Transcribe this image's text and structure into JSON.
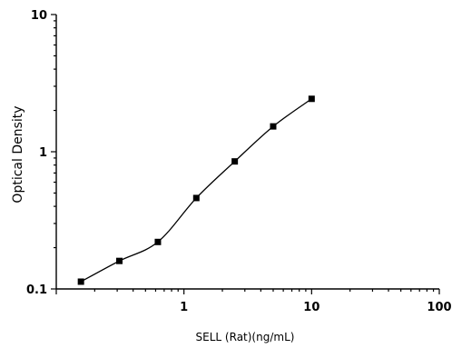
{
  "chart_data": {
    "type": "scatter",
    "xlabel": "SELL (Rat)(ng/mL)",
    "ylabel": "Optical Density",
    "xscale": "log",
    "yscale": "log",
    "xlim": [
      0.1,
      100
    ],
    "ylim": [
      0.1,
      10
    ],
    "x_ticks": [
      {
        "value": 1,
        "label": "1"
      },
      {
        "value": 10,
        "label": "10"
      },
      {
        "value": 100,
        "label": "100"
      }
    ],
    "y_ticks": [
      {
        "value": 0.1,
        "label": "0.1"
      },
      {
        "value": 1,
        "label": "1"
      },
      {
        "value": 10,
        "label": "10"
      }
    ],
    "grid": false,
    "legend": "none",
    "marker_color": "#000000",
    "series": [
      {
        "points": [
          {
            "x": 0.156,
            "y": 0.113
          },
          {
            "x": 0.312,
            "y": 0.16
          },
          {
            "x": 0.625,
            "y": 0.22
          },
          {
            "x": 1.25,
            "y": 0.46
          },
          {
            "x": 2.5,
            "y": 0.85
          },
          {
            "x": 5,
            "y": 1.53
          },
          {
            "x": 10,
            "y": 2.43
          }
        ],
        "fit_curve": true
      }
    ]
  }
}
